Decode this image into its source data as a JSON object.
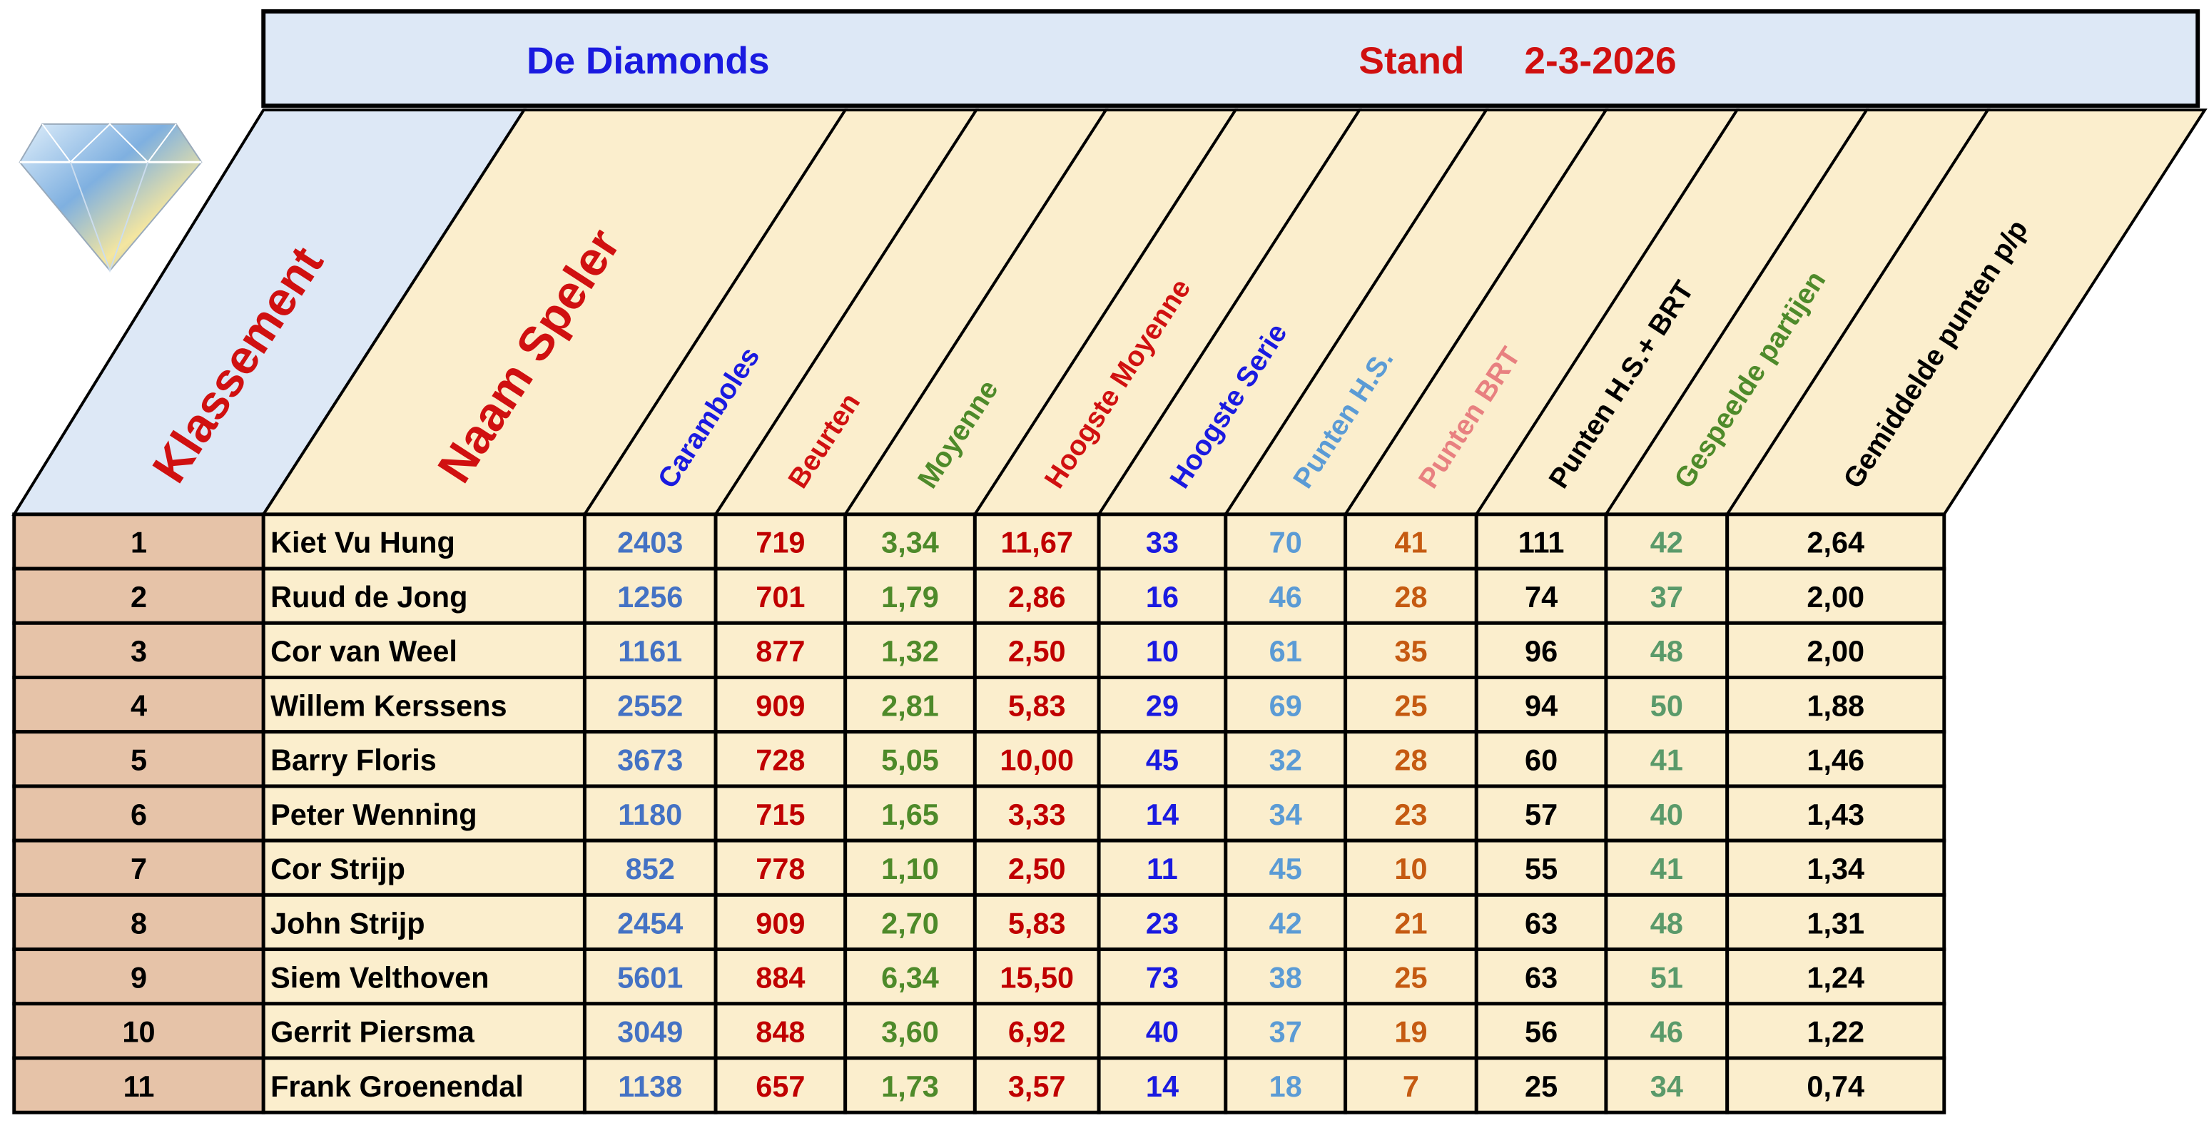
{
  "header": {
    "title": "De Diamonds",
    "stand_label": "Stand",
    "date": "2-3-2026"
  },
  "columns": [
    "Klassement",
    "Naam Speler",
    "Caramboles",
    "Beurten",
    "Moyenne",
    "Hoogste Moyenne",
    "Hoogste Serie",
    "Punten H.S.",
    "Punten BRT",
    "Punten H.S.+ BRT",
    "Gespeelde partijen",
    "Gemiddelde punten p/p"
  ],
  "rows": [
    [
      "1",
      "Kiet Vu Hung",
      "2403",
      "719",
      "3,34",
      "11,67",
      "33",
      "70",
      "41",
      "111",
      "42",
      "2,64"
    ],
    [
      "2",
      "Ruud de Jong",
      "1256",
      "701",
      "1,79",
      "2,86",
      "16",
      "46",
      "28",
      "74",
      "37",
      "2,00"
    ],
    [
      "3",
      "Cor van Weel",
      "1161",
      "877",
      "1,32",
      "2,50",
      "10",
      "61",
      "35",
      "96",
      "48",
      "2,00"
    ],
    [
      "4",
      "Willem Kerssens",
      "2552",
      "909",
      "2,81",
      "5,83",
      "29",
      "69",
      "25",
      "94",
      "50",
      "1,88"
    ],
    [
      "5",
      "Barry Floris",
      "3673",
      "728",
      "5,05",
      "10,00",
      "45",
      "32",
      "28",
      "60",
      "41",
      "1,46"
    ],
    [
      "6",
      "Peter Wenning",
      "1180",
      "715",
      "1,65",
      "3,33",
      "14",
      "34",
      "23",
      "57",
      "40",
      "1,43"
    ],
    [
      "7",
      "Cor Strijp",
      "852",
      "778",
      "1,10",
      "2,50",
      "11",
      "45",
      "10",
      "55",
      "41",
      "1,34"
    ],
    [
      "8",
      "John Strijp",
      "2454",
      "909",
      "2,70",
      "5,83",
      "23",
      "42",
      "21",
      "63",
      "48",
      "1,31"
    ],
    [
      "9",
      "Siem Velthoven",
      "5601",
      "884",
      "6,34",
      "15,50",
      "73",
      "38",
      "25",
      "63",
      "51",
      "1,24"
    ],
    [
      "10",
      "Gerrit Piersma",
      "3049",
      "848",
      "3,60",
      "6,92",
      "40",
      "37",
      "19",
      "56",
      "46",
      "1,22"
    ],
    [
      "11",
      "Frank Groenendal",
      "1138",
      "657",
      "1,73",
      "3,57",
      "14",
      "18",
      "7",
      "25",
      "34",
      "0,74"
    ]
  ]
}
